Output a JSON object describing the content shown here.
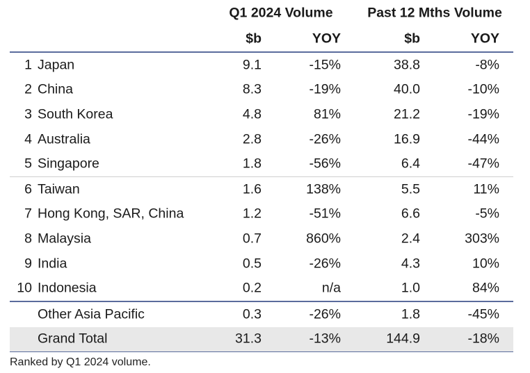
{
  "header": {
    "group_q1": "Q1 2024 Volume",
    "group_12m": "Past 12 Mths Volume",
    "col_q1_value": "$b",
    "col_q1_yoy": "YOY",
    "col_12m_value": "$b",
    "col_12m_yoy": "YOY"
  },
  "rows": [
    {
      "rank": "1",
      "name": "Japan",
      "q1_value": "9.1",
      "q1_yoy": "-15%",
      "m12_value": "38.8",
      "m12_yoy": "-8%"
    },
    {
      "rank": "2",
      "name": "China",
      "q1_value": "8.3",
      "q1_yoy": "-19%",
      "m12_value": "40.0",
      "m12_yoy": "-10%"
    },
    {
      "rank": "3",
      "name": "South Korea",
      "q1_value": "4.8",
      "q1_yoy": "81%",
      "m12_value": "21.2",
      "m12_yoy": "-19%"
    },
    {
      "rank": "4",
      "name": "Australia",
      "q1_value": "2.8",
      "q1_yoy": "-26%",
      "m12_value": "16.9",
      "m12_yoy": "-44%"
    },
    {
      "rank": "5",
      "name": "Singapore",
      "q1_value": "1.8",
      "q1_yoy": "-56%",
      "m12_value": "6.4",
      "m12_yoy": "-47%"
    },
    {
      "rank": "6",
      "name": "Taiwan",
      "q1_value": "1.6",
      "q1_yoy": "138%",
      "m12_value": "5.5",
      "m12_yoy": "11%"
    },
    {
      "rank": "7",
      "name": "Hong Kong, SAR, China",
      "q1_value": "1.2",
      "q1_yoy": "-51%",
      "m12_value": "6.6",
      "m12_yoy": "-5%"
    },
    {
      "rank": "8",
      "name": "Malaysia",
      "q1_value": "0.7",
      "q1_yoy": "860%",
      "m12_value": "2.4",
      "m12_yoy": "303%"
    },
    {
      "rank": "9",
      "name": "India",
      "q1_value": "0.5",
      "q1_yoy": "-26%",
      "m12_value": "4.3",
      "m12_yoy": "10%"
    },
    {
      "rank": "10",
      "name": "Indonesia",
      "q1_value": "0.2",
      "q1_yoy": "n/a",
      "m12_value": "1.0",
      "m12_yoy": "84%"
    }
  ],
  "other": {
    "name": "Other Asia Pacific",
    "q1_value": "0.3",
    "q1_yoy": "-26%",
    "m12_value": "1.8",
    "m12_yoy": "-45%"
  },
  "total": {
    "name": "Grand Total",
    "q1_value": "31.3",
    "q1_yoy": "-13%",
    "m12_value": "144.9",
    "m12_yoy": "-18%"
  },
  "footnote": "Ranked by Q1 2024 volume."
}
